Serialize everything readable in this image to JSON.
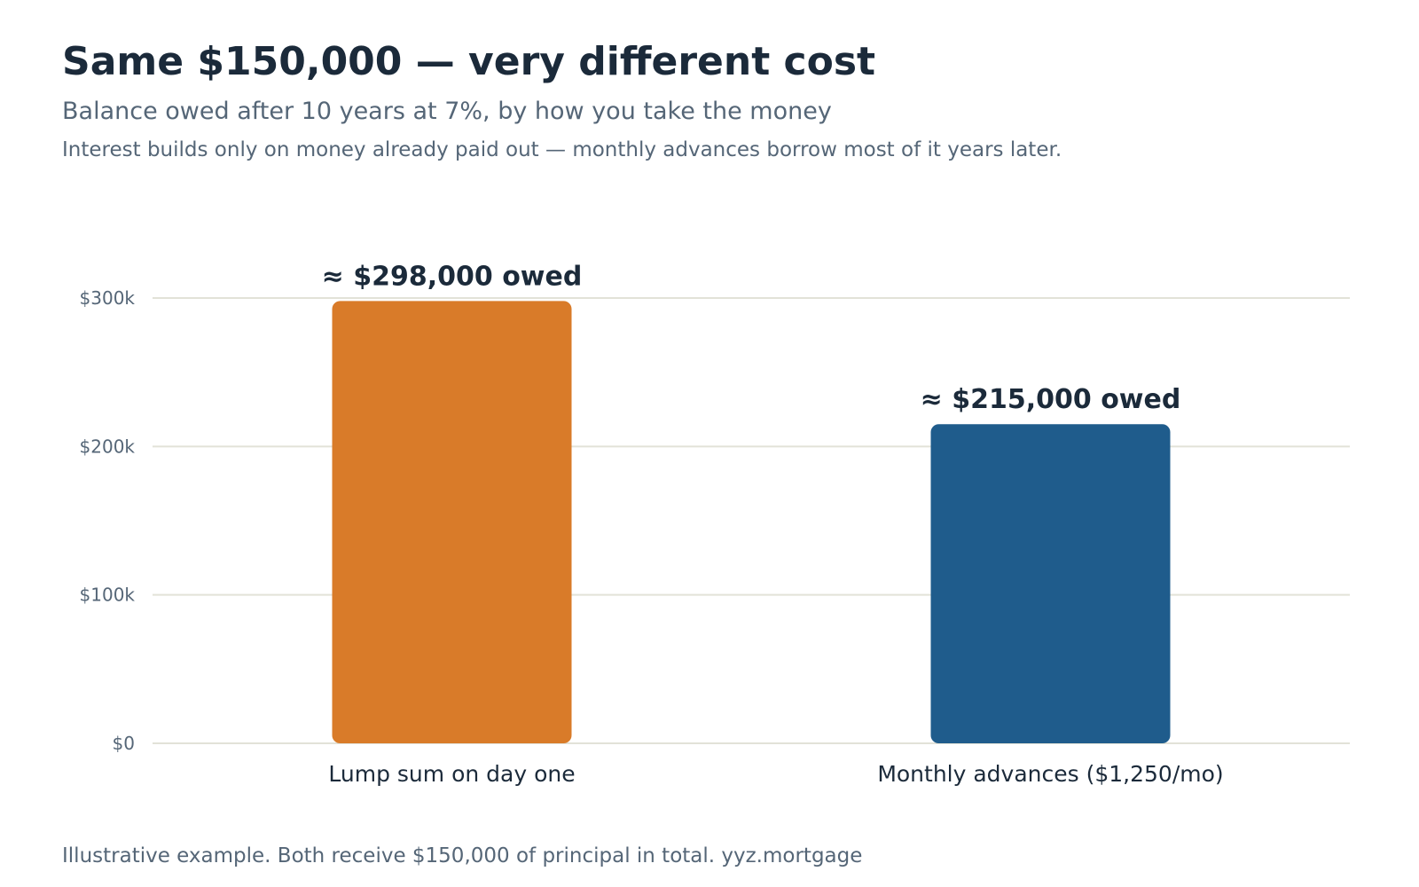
{
  "header": {
    "title": "Same $150,000 — very different cost",
    "subtitle": "Balance owed after 10 years at 7%, by how you take the money",
    "note": "Interest builds only on money already paid out — monthly advances borrow most of it years later."
  },
  "footer": {
    "text": "Illustrative example. Both receive $150,000 of principal in total. yyz.mortgage"
  },
  "chart_data": {
    "type": "bar",
    "title": "Same $150,000 — very different cost",
    "subtitle": "Balance owed after 10 years at 7%, by how you take the money",
    "xlabel": "",
    "ylabel": "",
    "categories": [
      "Lump sum on day one",
      "Monthly advances ($1,250/mo)"
    ],
    "values": [
      298000,
      215000
    ],
    "data_labels": [
      "≈ $298,000 owed",
      "≈ $215,000 owed"
    ],
    "colors": [
      "#d97b29",
      "#1f5c8c"
    ],
    "ylim": [
      0,
      300000
    ],
    "yticks": [
      0,
      100000,
      200000,
      300000
    ],
    "ytick_labels": [
      "$0",
      "$100k",
      "$200k",
      "$300k"
    ],
    "grid": true,
    "legend": "none"
  }
}
